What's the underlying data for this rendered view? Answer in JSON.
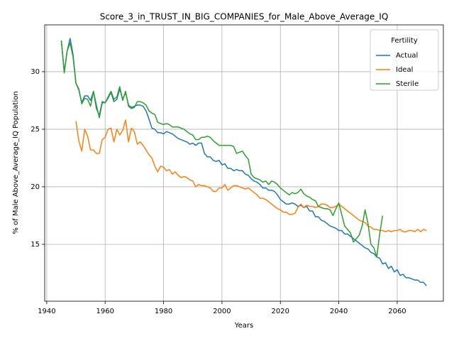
{
  "chart_data": {
    "type": "line",
    "title": "Score_3_in_TRUST_IN_BIG_COMPANIES_for_Male_Above_Average_IQ",
    "x_label": "Years",
    "y_label": "% of Male Above_Average_IQ Population",
    "legend_title": "Fertility",
    "legend_position": "upper right",
    "grid": true,
    "xlim": [
      1939.3,
      2075.8
    ],
    "ylim": [
      10.06,
      34.07
    ],
    "xticks": [
      1940,
      1960,
      1980,
      2000,
      2020,
      2040,
      2060
    ],
    "yticks": [
      15,
      20,
      25,
      30
    ],
    "x": [
      1945,
      1946,
      1947,
      1948,
      1949,
      1950,
      1951,
      1952,
      1953,
      1954,
      1955,
      1956,
      1957,
      1958,
      1959,
      1960,
      1961,
      1962,
      1963,
      1964,
      1965,
      1966,
      1967,
      1968,
      1969,
      1970,
      1971,
      1972,
      1973,
      1974,
      1975,
      1976,
      1977,
      1978,
      1979,
      1980,
      1981,
      1982,
      1983,
      1984,
      1985,
      1986,
      1987,
      1988,
      1989,
      1990,
      1991,
      1992,
      1993,
      1994,
      1995,
      1996,
      1997,
      1998,
      1999,
      2000,
      2001,
      2002,
      2003,
      2004,
      2005,
      2006,
      2007,
      2008,
      2009,
      2010,
      2011,
      2012,
      2013,
      2014,
      2015,
      2016,
      2017,
      2018,
      2019,
      2020,
      2021,
      2022,
      2023,
      2024,
      2025,
      2026,
      2027,
      2028,
      2029,
      2030,
      2031,
      2032,
      2033,
      2034,
      2035,
      2036,
      2037,
      2038,
      2039,
      2040,
      2041,
      2042,
      2043,
      2044,
      2045,
      2046,
      2047,
      2048,
      2049,
      2050,
      2051,
      2052,
      2053,
      2054,
      2055,
      2056,
      2057,
      2058,
      2059,
      2060,
      2061,
      2062,
      2063,
      2064,
      2065,
      2066,
      2067,
      2068,
      2069,
      2070
    ],
    "series": [
      {
        "name": "Actual",
        "color": "#1f77b4",
        "values": [
          32.7,
          30.0,
          31.8,
          32.9,
          31.5,
          29.0,
          28.4,
          27.3,
          27.9,
          27.9,
          27.5,
          28.3,
          26.8,
          26.2,
          27.4,
          27.3,
          27.7,
          28.2,
          27.4,
          27.6,
          28.5,
          27.6,
          28.2,
          27.1,
          26.9,
          27.0,
          27.1,
          27.1,
          27.0,
          26.6,
          25.9,
          25.1,
          25.0,
          24.7,
          24.7,
          24.6,
          24.8,
          24.7,
          24.6,
          24.4,
          24.2,
          24.1,
          24.0,
          23.9,
          23.7,
          23.8,
          23.6,
          23.8,
          23.8,
          22.9,
          22.6,
          22.6,
          22.3,
          22.2,
          22.3,
          21.9,
          22.0,
          21.6,
          21.6,
          21.4,
          21.5,
          21.4,
          21.4,
          21.1,
          21.0,
          20.7,
          20.5,
          20.4,
          20.2,
          19.9,
          19.9,
          19.7,
          19.7,
          19.6,
          19.3,
          18.9,
          18.7,
          18.5,
          18.5,
          18.6,
          18.5,
          18.3,
          18.4,
          18.2,
          18.3,
          17.9,
          17.9,
          17.4,
          17.4,
          17.1,
          17.0,
          16.8,
          16.6,
          16.5,
          16.4,
          16.2,
          16.2,
          15.9,
          15.9,
          15.7,
          15.5,
          15.3,
          15.1,
          14.9,
          14.7,
          14.6,
          14.3,
          14.2,
          13.9,
          13.8,
          13.3,
          13.4,
          12.9,
          13.1,
          12.6,
          12.8,
          12.3,
          12.4,
          12.1,
          12.1,
          12.0,
          11.9,
          11.9,
          11.7,
          11.7,
          11.4
        ]
      },
      {
        "name": "Ideal",
        "color": "#ff7f0e",
        "values": [
          null,
          null,
          null,
          null,
          null,
          25.7,
          24.0,
          23.1,
          25.0,
          24.4,
          23.2,
          23.2,
          22.9,
          22.9,
          24.1,
          24.3,
          25.0,
          25.1,
          23.9,
          25.0,
          24.5,
          24.9,
          25.8,
          23.9,
          25.1,
          24.8,
          23.7,
          23.9,
          23.6,
          23.2,
          22.8,
          22.5,
          21.8,
          21.3,
          21.8,
          21.7,
          21.4,
          21.5,
          21.1,
          21.3,
          21.0,
          20.8,
          20.9,
          20.8,
          20.6,
          20.5,
          20.0,
          20.2,
          20.1,
          20.1,
          20.0,
          19.9,
          19.6,
          19.6,
          19.9,
          19.9,
          20.2,
          19.7,
          19.9,
          20.1,
          20.1,
          20.0,
          19.9,
          19.8,
          19.9,
          19.7,
          19.5,
          19.3,
          19.0,
          19.0,
          18.9,
          18.7,
          18.5,
          18.3,
          18.1,
          18.0,
          17.8,
          17.8,
          17.6,
          17.6,
          17.7,
          18.2,
          18.5,
          18.2,
          18.4,
          18.3,
          18.3,
          18.2,
          18.3,
          18.5,
          18.5,
          18.4,
          18.2,
          18.2,
          18.3,
          18.5,
          18.3,
          18.1,
          17.9,
          17.7,
          17.5,
          17.3,
          17.1,
          17.0,
          16.9,
          16.6,
          16.5,
          16.3,
          16.3,
          16.2,
          16.2,
          16.1,
          16.2,
          16.1,
          16.2,
          16.2,
          16.3,
          16.1,
          16.1,
          16.2,
          16.2,
          16.1,
          16.3,
          16.1,
          16.3,
          16.2
        ]
      },
      {
        "name": "Sterile",
        "color": "#2ca02c",
        "values": [
          32.7,
          29.9,
          31.8,
          32.5,
          31.3,
          29.0,
          28.5,
          27.2,
          27.7,
          27.6,
          27.0,
          28.3,
          27.1,
          26.0,
          27.3,
          27.3,
          27.8,
          28.3,
          27.6,
          27.8,
          28.7,
          27.5,
          28.3,
          27.0,
          26.8,
          26.9,
          27.4,
          27.4,
          27.3,
          27.1,
          26.6,
          26.4,
          26.3,
          25.6,
          25.5,
          25.4,
          25.5,
          25.4,
          25.2,
          25.2,
          25.2,
          25.1,
          25.0,
          24.8,
          24.6,
          24.5,
          24.1,
          24.1,
          24.3,
          24.3,
          24.4,
          24.3,
          24.0,
          23.8,
          23.6,
          23.6,
          23.6,
          23.6,
          23.6,
          23.5,
          22.9,
          23.0,
          23.1,
          22.7,
          22.4,
          21.1,
          20.8,
          20.7,
          20.6,
          20.4,
          20.5,
          20.2,
          20.5,
          20.4,
          20.2,
          19.9,
          19.7,
          19.5,
          19.3,
          19.5,
          19.4,
          19.5,
          19.8,
          19.4,
          19.2,
          19.1,
          18.9,
          18.8,
          18.3,
          18.2,
          18.1,
          18.1,
          18.0,
          17.5,
          18.1,
          18.6,
          17.6,
          16.6,
          16.3,
          16.0,
          15.2,
          15.5,
          15.8,
          16.6,
          18.0,
          16.8,
          15.0,
          14.7,
          13.9,
          15.9,
          17.5,
          null,
          null,
          null,
          null,
          null,
          null,
          null,
          null,
          null,
          null,
          null,
          null,
          null,
          null,
          null
        ]
      }
    ]
  }
}
